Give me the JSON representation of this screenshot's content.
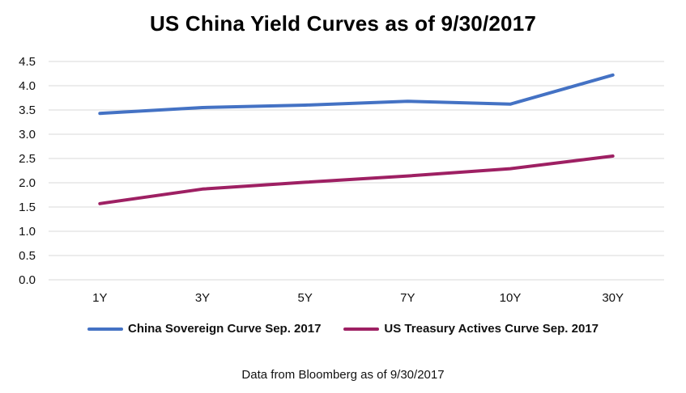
{
  "chart_data": {
    "type": "line",
    "title": "US China Yield Curves as of 9/30/2017",
    "categories": [
      "1Y",
      "3Y",
      "5Y",
      "7Y",
      "10Y",
      "30Y"
    ],
    "ylim": [
      0,
      4.5
    ],
    "yticks": [
      "0.0",
      "0.5",
      "1.0",
      "1.5",
      "2.0",
      "2.5",
      "3.0",
      "3.5",
      "4.0",
      "4.5"
    ],
    "ytick_values": [
      0,
      0.5,
      1,
      1.5,
      2,
      2.5,
      3,
      3.5,
      4,
      4.5
    ],
    "grid": true,
    "legend_position": "bottom",
    "series": [
      {
        "name": "China Sovereign Curve Sep. 2017",
        "color": "#4472c4",
        "values": [
          3.43,
          3.55,
          3.6,
          3.68,
          3.62,
          4.22
        ]
      },
      {
        "name": "US Treasury Actives Curve Sep. 2017",
        "color": "#9e2063",
        "values": [
          1.57,
          1.87,
          2.01,
          2.14,
          2.29,
          2.55
        ]
      }
    ]
  },
  "footnote": "Data from Bloomberg as of 9/30/2017"
}
